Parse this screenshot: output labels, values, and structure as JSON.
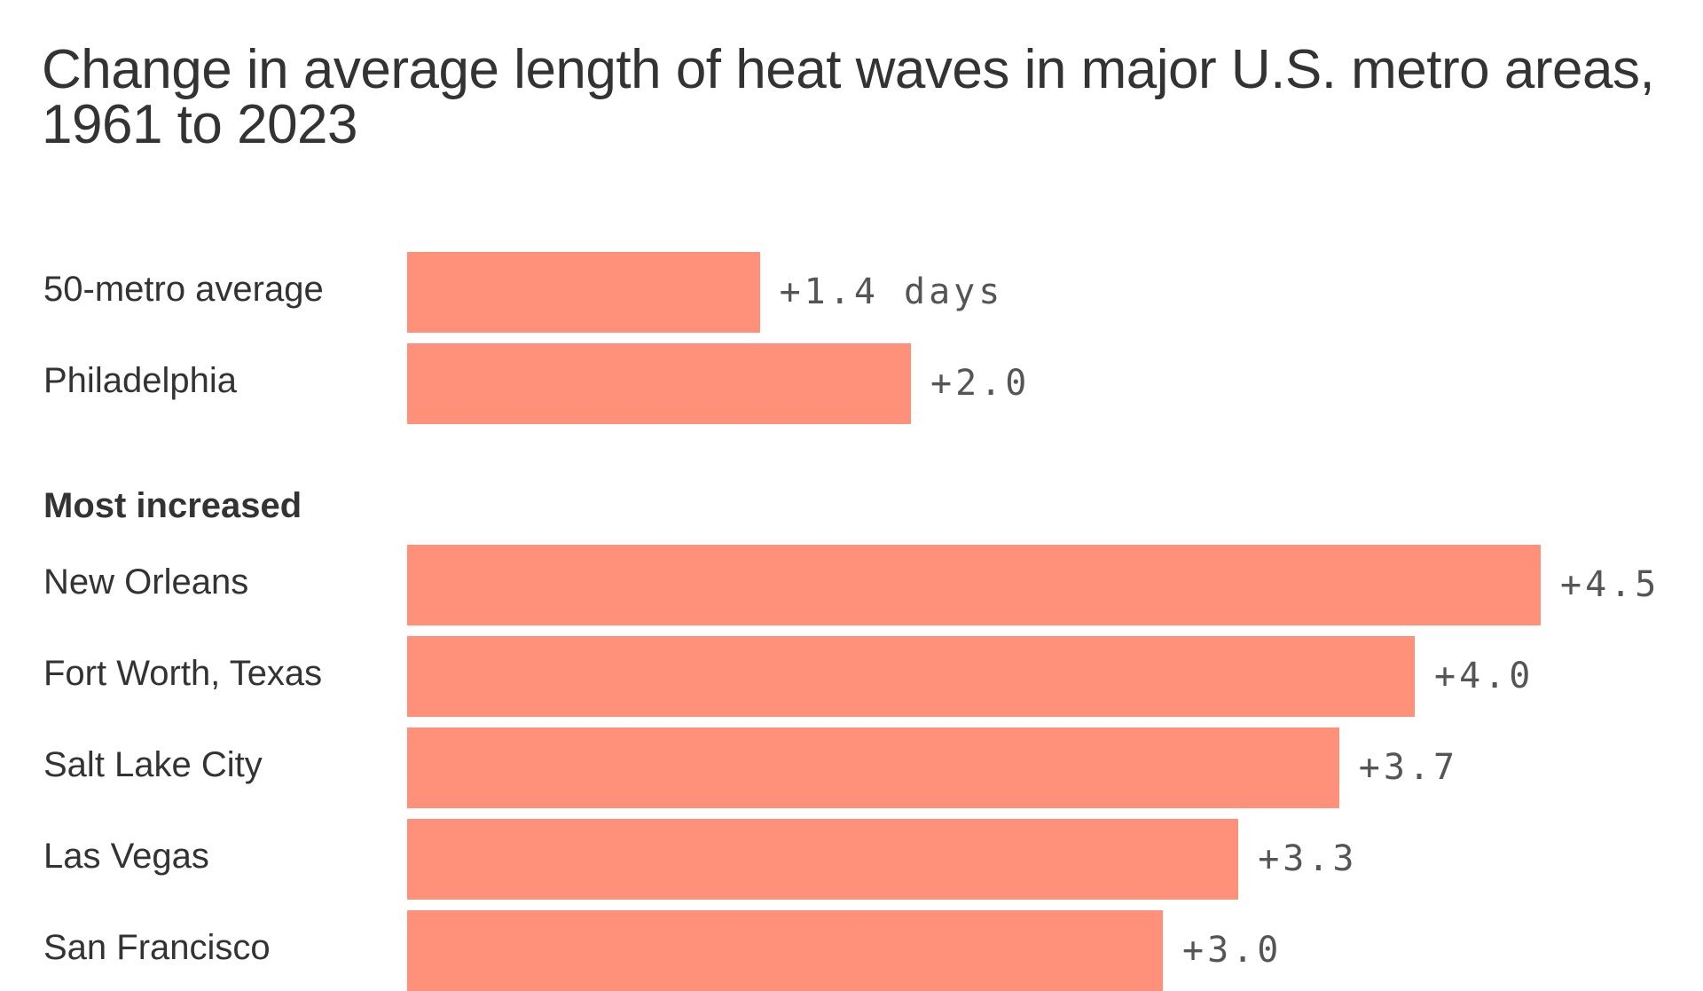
{
  "chart_data": {
    "type": "bar",
    "orientation": "horizontal",
    "title": "Change in average length of heat waves in major U.S. metro areas, 1961 to 2023",
    "unit": "days",
    "bar_color": "#FF917A",
    "groups": [
      {
        "heading": "",
        "categories": [
          "50-metro average",
          "Philadelphia"
        ],
        "values": [
          1.4,
          2.0
        ],
        "labels": [
          "+1.4 days",
          "+2.0"
        ]
      },
      {
        "heading": "Most increased",
        "categories": [
          "New Orleans",
          "Fort Worth, Texas",
          "Salt Lake City",
          "Las Vegas",
          "San Francisco"
        ],
        "values": [
          4.5,
          4.0,
          3.7,
          3.3,
          3.0
        ],
        "labels": [
          "+4.5",
          "+4.0",
          "+3.7",
          "+3.3",
          "+3.0"
        ]
      }
    ]
  }
}
